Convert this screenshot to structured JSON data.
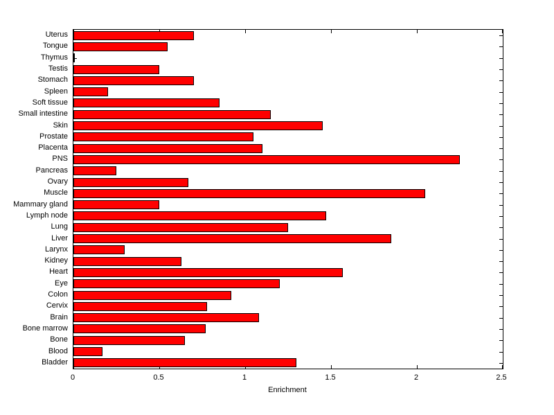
{
  "figure": {
    "background": "#ffffff"
  },
  "chart_data": {
    "type": "bar",
    "orientation": "horizontal",
    "title": "",
    "xlabel": "Enrichment",
    "ylabel": "",
    "xlim": [
      0,
      2.5
    ],
    "xticks": [
      0,
      0.5,
      1,
      1.5,
      2,
      2.5
    ],
    "xtick_labels": [
      "0",
      "0.5",
      "1",
      "1.5",
      "2",
      "2.5"
    ],
    "grid": false,
    "legend": null,
    "bar_color": "#ff0000",
    "bar_edge_color": "#000000",
    "categories": [
      "Uterus",
      "Tongue",
      "Thymus",
      "Testis",
      "Stomach",
      "Spleen",
      "Soft tissue",
      "Small intestine",
      "Skin",
      "Prostate",
      "Placenta",
      "PNS",
      "Pancreas",
      "Ovary",
      "Muscle",
      "Mammary gland",
      "Lymph node",
      "Lung",
      "Liver",
      "Larynx",
      "Kidney",
      "Heart",
      "Eye",
      "Colon",
      "Cervix",
      "Brain",
      "Bone marrow",
      "Bone",
      "Blood",
      "Bladder"
    ],
    "values": [
      0.7,
      0.55,
      0.01,
      0.5,
      0.7,
      0.2,
      0.85,
      1.15,
      1.45,
      1.05,
      1.1,
      2.25,
      0.25,
      0.67,
      2.05,
      0.5,
      1.47,
      1.25,
      1.85,
      0.3,
      0.63,
      1.57,
      1.2,
      0.92,
      0.78,
      1.08,
      0.77,
      0.65,
      0.17,
      1.3
    ]
  }
}
